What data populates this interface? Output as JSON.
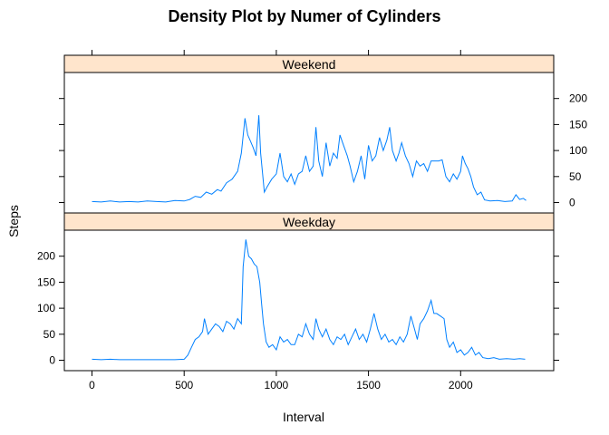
{
  "chart_data": {
    "type": "line",
    "title": "Density Plot by Numer of Cylinders",
    "xlabel": "Interval",
    "ylabel": "Steps",
    "xlim": [
      -150,
      2505
    ],
    "ylim": [
      -20,
      250
    ],
    "x_ticks": [
      0,
      500,
      1000,
      1500,
      2000
    ],
    "y_ticks": [
      0,
      50,
      100,
      150,
      200
    ],
    "grid": false,
    "series": [
      {
        "name": "Weekend",
        "points": [
          [
            0,
            2
          ],
          [
            50,
            1
          ],
          [
            100,
            3
          ],
          [
            150,
            1
          ],
          [
            200,
            2
          ],
          [
            250,
            1
          ],
          [
            300,
            3
          ],
          [
            350,
            2
          ],
          [
            400,
            1
          ],
          [
            450,
            4
          ],
          [
            500,
            3
          ],
          [
            530,
            6
          ],
          [
            560,
            12
          ],
          [
            590,
            10
          ],
          [
            620,
            20
          ],
          [
            650,
            16
          ],
          [
            680,
            25
          ],
          [
            700,
            22
          ],
          [
            730,
            38
          ],
          [
            760,
            45
          ],
          [
            790,
            60
          ],
          [
            810,
            95
          ],
          [
            830,
            162
          ],
          [
            845,
            130
          ],
          [
            860,
            118
          ],
          [
            875,
            105
          ],
          [
            890,
            90
          ],
          [
            905,
            168
          ],
          [
            915,
            95
          ],
          [
            935,
            20
          ],
          [
            950,
            30
          ],
          [
            975,
            45
          ],
          [
            1000,
            55
          ],
          [
            1020,
            95
          ],
          [
            1040,
            50
          ],
          [
            1060,
            40
          ],
          [
            1080,
            55
          ],
          [
            1100,
            35
          ],
          [
            1120,
            55
          ],
          [
            1140,
            60
          ],
          [
            1160,
            90
          ],
          [
            1180,
            60
          ],
          [
            1200,
            70
          ],
          [
            1215,
            145
          ],
          [
            1230,
            80
          ],
          [
            1250,
            50
          ],
          [
            1270,
            115
          ],
          [
            1290,
            70
          ],
          [
            1310,
            95
          ],
          [
            1330,
            85
          ],
          [
            1345,
            130
          ],
          [
            1365,
            110
          ],
          [
            1385,
            90
          ],
          [
            1400,
            70
          ],
          [
            1420,
            40
          ],
          [
            1440,
            60
          ],
          [
            1460,
            90
          ],
          [
            1480,
            45
          ],
          [
            1500,
            110
          ],
          [
            1520,
            80
          ],
          [
            1540,
            90
          ],
          [
            1560,
            125
          ],
          [
            1580,
            100
          ],
          [
            1600,
            120
          ],
          [
            1615,
            145
          ],
          [
            1630,
            100
          ],
          [
            1650,
            80
          ],
          [
            1665,
            95
          ],
          [
            1680,
            115
          ],
          [
            1700,
            90
          ],
          [
            1720,
            75
          ],
          [
            1740,
            50
          ],
          [
            1760,
            80
          ],
          [
            1780,
            70
          ],
          [
            1800,
            75
          ],
          [
            1820,
            60
          ],
          [
            1840,
            80
          ],
          [
            1860,
            80
          ],
          [
            1880,
            80
          ],
          [
            1900,
            82
          ],
          [
            1920,
            50
          ],
          [
            1940,
            40
          ],
          [
            1960,
            55
          ],
          [
            1980,
            45
          ],
          [
            2000,
            60
          ],
          [
            2010,
            90
          ],
          [
            2025,
            75
          ],
          [
            2040,
            65
          ],
          [
            2055,
            50
          ],
          [
            2070,
            30
          ],
          [
            2090,
            15
          ],
          [
            2110,
            20
          ],
          [
            2130,
            5
          ],
          [
            2160,
            3
          ],
          [
            2200,
            4
          ],
          [
            2240,
            2
          ],
          [
            2280,
            3
          ],
          [
            2300,
            15
          ],
          [
            2320,
            6
          ],
          [
            2340,
            8
          ],
          [
            2355,
            4
          ]
        ]
      },
      {
        "name": "Weekday",
        "points": [
          [
            0,
            2
          ],
          [
            50,
            1
          ],
          [
            100,
            2
          ],
          [
            150,
            1
          ],
          [
            200,
            1
          ],
          [
            250,
            1
          ],
          [
            300,
            1
          ],
          [
            350,
            1
          ],
          [
            400,
            1
          ],
          [
            450,
            1
          ],
          [
            500,
            2
          ],
          [
            520,
            10
          ],
          [
            540,
            25
          ],
          [
            560,
            40
          ],
          [
            580,
            45
          ],
          [
            600,
            55
          ],
          [
            610,
            80
          ],
          [
            630,
            50
          ],
          [
            650,
            60
          ],
          [
            670,
            70
          ],
          [
            690,
            65
          ],
          [
            710,
            55
          ],
          [
            730,
            75
          ],
          [
            750,
            70
          ],
          [
            770,
            60
          ],
          [
            790,
            80
          ],
          [
            810,
            70
          ],
          [
            820,
            180
          ],
          [
            835,
            232
          ],
          [
            850,
            200
          ],
          [
            865,
            195
          ],
          [
            880,
            185
          ],
          [
            895,
            180
          ],
          [
            910,
            150
          ],
          [
            920,
            110
          ],
          [
            930,
            70
          ],
          [
            945,
            35
          ],
          [
            960,
            25
          ],
          [
            980,
            30
          ],
          [
            1000,
            20
          ],
          [
            1020,
            45
          ],
          [
            1040,
            35
          ],
          [
            1060,
            40
          ],
          [
            1080,
            30
          ],
          [
            1100,
            30
          ],
          [
            1120,
            50
          ],
          [
            1140,
            45
          ],
          [
            1160,
            70
          ],
          [
            1180,
            50
          ],
          [
            1200,
            40
          ],
          [
            1215,
            80
          ],
          [
            1230,
            60
          ],
          [
            1250,
            45
          ],
          [
            1270,
            60
          ],
          [
            1290,
            40
          ],
          [
            1310,
            30
          ],
          [
            1330,
            45
          ],
          [
            1350,
            40
          ],
          [
            1370,
            50
          ],
          [
            1390,
            30
          ],
          [
            1410,
            45
          ],
          [
            1430,
            60
          ],
          [
            1450,
            40
          ],
          [
            1470,
            50
          ],
          [
            1490,
            35
          ],
          [
            1510,
            60
          ],
          [
            1530,
            90
          ],
          [
            1550,
            60
          ],
          [
            1570,
            40
          ],
          [
            1590,
            50
          ],
          [
            1610,
            35
          ],
          [
            1630,
            40
          ],
          [
            1650,
            30
          ],
          [
            1670,
            45
          ],
          [
            1690,
            35
          ],
          [
            1710,
            50
          ],
          [
            1730,
            85
          ],
          [
            1750,
            60
          ],
          [
            1765,
            40
          ],
          [
            1780,
            70
          ],
          [
            1800,
            80
          ],
          [
            1820,
            95
          ],
          [
            1840,
            115
          ],
          [
            1855,
            90
          ],
          [
            1870,
            90
          ],
          [
            1890,
            85
          ],
          [
            1910,
            80
          ],
          [
            1925,
            40
          ],
          [
            1940,
            25
          ],
          [
            1960,
            35
          ],
          [
            1980,
            15
          ],
          [
            2000,
            20
          ],
          [
            2020,
            10
          ],
          [
            2040,
            15
          ],
          [
            2060,
            25
          ],
          [
            2080,
            10
          ],
          [
            2100,
            15
          ],
          [
            2120,
            5
          ],
          [
            2150,
            3
          ],
          [
            2180,
            5
          ],
          [
            2210,
            2
          ],
          [
            2250,
            3
          ],
          [
            2290,
            2
          ],
          [
            2320,
            3
          ],
          [
            2350,
            2
          ]
        ]
      }
    ]
  }
}
